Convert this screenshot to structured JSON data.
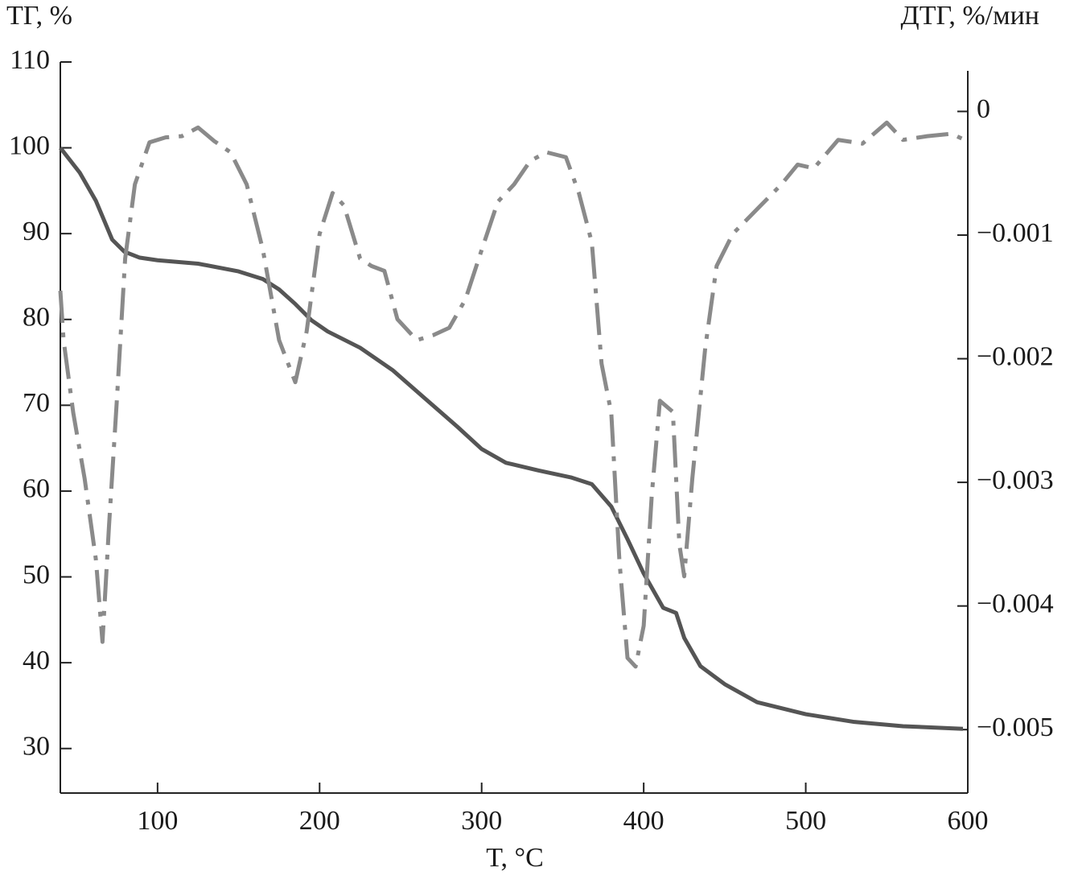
{
  "chart_data": {
    "type": "line",
    "x_label": "T, °C",
    "y_label": "ТГ, %",
    "y2_label": "ДТГ, %/мин",
    "xlim": [
      40,
      600
    ],
    "xticks": [
      100,
      200,
      300,
      400,
      500,
      600
    ],
    "ylim": [
      25,
      110
    ],
    "yticks": [
      30,
      40,
      50,
      60,
      70,
      80,
      90,
      100,
      110
    ],
    "y2lim": [
      -0.0055,
      0.0004
    ],
    "y2ticks": [
      0,
      {
        "value": -0.001,
        "label": "−0.001"
      },
      {
        "value": -0.002,
        "label": "−0.002"
      },
      {
        "value": -0.003,
        "label": "−0.003"
      },
      {
        "value": -0.004,
        "label": "−0.004"
      },
      {
        "value": -0.005,
        "label": "−0.005"
      }
    ],
    "series": [
      {
        "color": "#555555",
        "dash": "solid",
        "x": [
          40,
          52,
          62,
          72,
          79.5,
          89,
          100,
          125,
          150,
          165,
          175,
          185,
          195,
          205,
          225,
          245,
          265,
          285,
          300,
          315,
          335,
          355,
          368,
          380,
          390,
          400,
          412,
          420,
          425,
          435,
          450,
          470,
          500,
          530,
          560,
          597
        ],
        "values": [
          100,
          97.1,
          93.8,
          89.3,
          87.9,
          87.2,
          86.9,
          86.5,
          85.6,
          84.7,
          83.5,
          81.8,
          79.9,
          78.6,
          76.7,
          74.1,
          70.8,
          67.5,
          64.9,
          63.3,
          62.4,
          61.6,
          60.8,
          58.2,
          54.4,
          50.4,
          46.4,
          45.8,
          42.9,
          39.6,
          37.5,
          35.4,
          34.0,
          33.1,
          32.6,
          32.3
        ]
      },
      {
        "color": "#8a8a8a",
        "dash": "dashdot",
        "axis": "y2",
        "x": [
          40,
          42,
          48,
          55,
          62,
          66,
          70,
          75,
          80,
          86,
          95,
          105,
          115,
          125,
          135,
          145,
          155,
          165,
          175,
          185,
          192,
          200,
          208,
          215,
          225,
          232,
          240,
          248,
          260,
          270,
          280,
          290,
          300,
          310,
          320,
          330,
          340,
          352,
          360,
          368,
          374,
          380,
          385,
          390,
          395,
          400,
          405,
          410,
          418,
          422,
          425,
          430,
          438,
          445,
          455,
          470,
          485,
          495,
          505,
          520,
          535,
          550,
          560,
          575,
          590,
          598
        ],
        "values": [
          -0.00145,
          -0.00185,
          -0.00244,
          -0.00297,
          -0.00363,
          -0.00429,
          -0.00336,
          -0.00231,
          -0.00119,
          -0.00059,
          -0.00025,
          -0.00021,
          -0.0002,
          -0.00013,
          -0.00024,
          -0.00033,
          -0.00059,
          -0.00112,
          -0.00185,
          -0.00219,
          -0.00178,
          -0.00099,
          -0.00066,
          -0.00076,
          -0.00119,
          -0.00125,
          -0.00129,
          -0.00168,
          -0.00185,
          -0.00181,
          -0.00175,
          -0.00152,
          -0.00112,
          -0.00073,
          -0.00059,
          -0.0004,
          -0.00033,
          -0.00037,
          -0.00066,
          -0.00106,
          -0.00204,
          -0.00244,
          -0.00363,
          -0.00442,
          -0.00449,
          -0.00416,
          -0.0031,
          -0.00234,
          -0.00243,
          -0.0035,
          -0.00376,
          -0.00297,
          -0.00191,
          -0.00125,
          -0.00099,
          -0.00079,
          -0.00059,
          -0.00043,
          -0.00046,
          -0.00023,
          -0.00026,
          -9e-05,
          -0.00023,
          -0.0002,
          -0.00018,
          -0.00023
        ]
      }
    ]
  }
}
